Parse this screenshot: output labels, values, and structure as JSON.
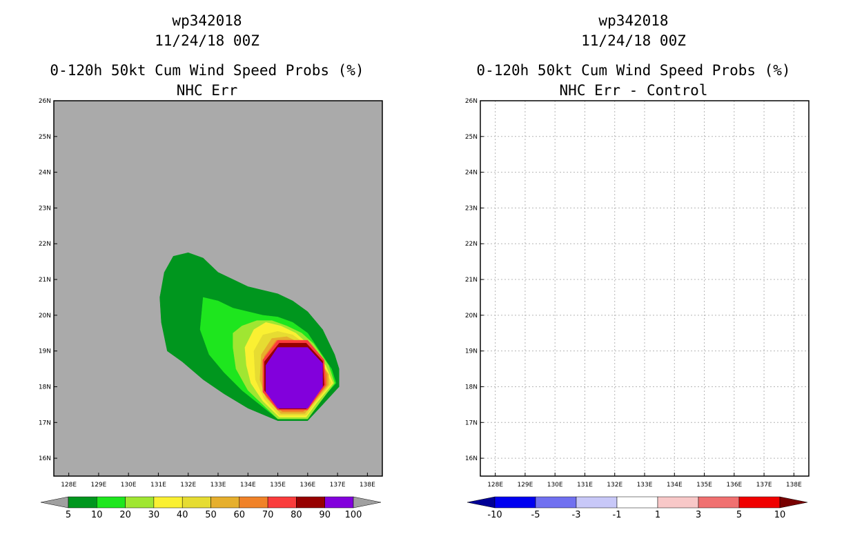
{
  "panels": [
    {
      "id": "left",
      "storm_id": "wp342018",
      "datetime": "11/24/18 00Z",
      "title": "0-120h 50kt Cum Wind Speed Probs (%)",
      "subtitle": "NHC Err",
      "background_color": "#aaaaaa"
    },
    {
      "id": "right",
      "storm_id": "wp342018",
      "datetime": "11/24/18 00Z",
      "title": "0-120h 50kt Cum Wind Speed Probs (%)",
      "subtitle": "NHC Err - Control",
      "background_color": "#ffffff"
    }
  ],
  "chart_data": [
    {
      "type": "contour-map",
      "title": "0-120h 50kt Cum Wind Speed Probs (%)",
      "subtitle": "NHC Err",
      "storm": "wp342018",
      "valid": "11/24/18 00Z",
      "xlim": [
        127.5,
        138.5
      ],
      "ylim": [
        15.5,
        26.0
      ],
      "x_ticks": [
        128,
        129,
        130,
        131,
        132,
        133,
        134,
        135,
        136,
        137,
        138
      ],
      "x_tick_labels": [
        "128E",
        "129E",
        "130E",
        "131E",
        "132E",
        "133E",
        "134E",
        "135E",
        "136E",
        "137E",
        "138E"
      ],
      "y_ticks": [
        16,
        17,
        18,
        19,
        20,
        21,
        22,
        23,
        24,
        25,
        26
      ],
      "y_tick_labels": [
        "16N",
        "17N",
        "18N",
        "19N",
        "20N",
        "21N",
        "22N",
        "23N",
        "24N",
        "25N",
        "26N"
      ],
      "grid": false,
      "colorbar": {
        "levels": [
          "5",
          "10",
          "20",
          "30",
          "40",
          "50",
          "60",
          "70",
          "80",
          "90",
          "100"
        ],
        "colors": [
          "#00961e",
          "#1ee61e",
          "#a0e632",
          "#faf032",
          "#e6dc32",
          "#e6af2d",
          "#f08228",
          "#fa3c3c",
          "#960000",
          "#8200dc"
        ],
        "extend_colors": [
          "#a0a0a0",
          "#a0a0a0"
        ]
      },
      "contours": [
        {
          "level": 5,
          "color": "#00961e",
          "polygon": [
            [
              131.05,
              20.5
            ],
            [
              131.2,
              21.2
            ],
            [
              131.5,
              21.65
            ],
            [
              132.0,
              21.75
            ],
            [
              132.5,
              21.6
            ],
            [
              133.0,
              21.2
            ],
            [
              133.5,
              21.0
            ],
            [
              134.0,
              20.8
            ],
            [
              134.5,
              20.7
            ],
            [
              135.0,
              20.6
            ],
            [
              135.5,
              20.4
            ],
            [
              136.0,
              20.1
            ],
            [
              136.5,
              19.6
            ],
            [
              136.9,
              18.9
            ],
            [
              137.05,
              18.5
            ],
            [
              137.05,
              18.0
            ],
            [
              136.5,
              17.5
            ],
            [
              136.0,
              17.05
            ],
            [
              135.0,
              17.05
            ],
            [
              134.0,
              17.4
            ],
            [
              133.2,
              17.8
            ],
            [
              132.5,
              18.2
            ],
            [
              131.8,
              18.7
            ],
            [
              131.3,
              19.0
            ],
            [
              131.1,
              19.8
            ]
          ]
        },
        {
          "level": 10,
          "color": "#1ee61e",
          "polygon": [
            [
              132.4,
              19.6
            ],
            [
              132.5,
              20.5
            ],
            [
              133.0,
              20.4
            ],
            [
              133.5,
              20.2
            ],
            [
              134.0,
              20.1
            ],
            [
              134.5,
              20.0
            ],
            [
              135.0,
              19.95
            ],
            [
              135.5,
              19.8
            ],
            [
              136.0,
              19.5
            ],
            [
              136.4,
              19.0
            ],
            [
              136.8,
              18.5
            ],
            [
              136.95,
              18.1
            ],
            [
              136.4,
              17.6
            ],
            [
              136.0,
              17.1
            ],
            [
              135.0,
              17.1
            ],
            [
              134.4,
              17.5
            ],
            [
              133.8,
              17.9
            ],
            [
              133.2,
              18.4
            ],
            [
              132.7,
              18.9
            ]
          ]
        },
        {
          "level": 20,
          "color": "#a0e632",
          "polygon": [
            [
              133.5,
              19.1
            ],
            [
              133.5,
              19.5
            ],
            [
              133.8,
              19.7
            ],
            [
              134.3,
              19.85
            ],
            [
              134.8,
              19.85
            ],
            [
              135.3,
              19.7
            ],
            [
              135.8,
              19.5
            ],
            [
              136.2,
              19.2
            ],
            [
              136.7,
              18.6
            ],
            [
              136.9,
              18.1
            ],
            [
              136.4,
              17.55
            ],
            [
              136.0,
              17.1
            ],
            [
              135.0,
              17.1
            ],
            [
              134.5,
              17.5
            ],
            [
              134.0,
              17.9
            ],
            [
              133.6,
              18.5
            ]
          ]
        },
        {
          "level": 30,
          "color": "#faf032",
          "polygon": [
            [
              133.9,
              19.1
            ],
            [
              134.2,
              19.6
            ],
            [
              134.6,
              19.8
            ],
            [
              135.1,
              19.7
            ],
            [
              135.6,
              19.5
            ],
            [
              136.0,
              19.2
            ],
            [
              136.6,
              18.6
            ],
            [
              136.85,
              18.1
            ],
            [
              136.3,
              17.55
            ],
            [
              135.95,
              17.15
            ],
            [
              135.05,
              17.15
            ],
            [
              134.5,
              17.6
            ],
            [
              134.1,
              18.1
            ],
            [
              133.95,
              18.6
            ]
          ]
        },
        {
          "level": 40,
          "color": "#e6dc32",
          "polygon": [
            [
              134.2,
              19.0
            ],
            [
              134.5,
              19.45
            ],
            [
              135.0,
              19.55
            ],
            [
              135.5,
              19.45
            ],
            [
              136.0,
              19.15
            ],
            [
              136.5,
              18.6
            ],
            [
              136.8,
              18.1
            ],
            [
              136.25,
              17.55
            ],
            [
              135.95,
              17.2
            ],
            [
              135.05,
              17.2
            ],
            [
              134.55,
              17.65
            ],
            [
              134.25,
              18.2
            ]
          ]
        },
        {
          "level": 50,
          "color": "#e6af2d",
          "polygon": [
            [
              134.45,
              18.9
            ],
            [
              134.8,
              19.35
            ],
            [
              135.3,
              19.4
            ],
            [
              135.8,
              19.2
            ],
            [
              136.3,
              18.85
            ],
            [
              136.7,
              18.35
            ],
            [
              136.7,
              18.05
            ],
            [
              136.2,
              17.55
            ],
            [
              135.9,
              17.25
            ],
            [
              135.1,
              17.25
            ],
            [
              134.6,
              17.7
            ],
            [
              134.4,
              18.2
            ]
          ]
        },
        {
          "level": 60,
          "color": "#f08228",
          "polygon": [
            [
              134.55,
              18.85
            ],
            [
              134.95,
              19.3
            ],
            [
              135.5,
              19.3
            ],
            [
              136.0,
              19.1
            ],
            [
              136.35,
              18.8
            ],
            [
              136.65,
              18.35
            ],
            [
              136.65,
              18.05
            ],
            [
              136.15,
              17.55
            ],
            [
              135.85,
              17.3
            ],
            [
              135.15,
              17.3
            ],
            [
              134.65,
              17.75
            ],
            [
              134.5,
              18.25
            ]
          ]
        },
        {
          "level": 70,
          "color": "#fa3c3c",
          "polygon": [
            [
              134.5,
              18.75
            ],
            [
              135.0,
              19.3
            ],
            [
              136.0,
              19.3
            ],
            [
              136.55,
              18.75
            ],
            [
              136.6,
              18.05
            ],
            [
              136.0,
              17.35
            ],
            [
              135.0,
              17.35
            ],
            [
              134.5,
              17.85
            ]
          ]
        },
        {
          "level": 80,
          "color": "#960000",
          "polygon": [
            [
              134.55,
              18.7
            ],
            [
              135.05,
              19.22
            ],
            [
              135.95,
              19.22
            ],
            [
              136.5,
              18.72
            ],
            [
              136.55,
              18.05
            ],
            [
              135.95,
              17.38
            ],
            [
              135.05,
              17.38
            ],
            [
              134.55,
              17.9
            ]
          ]
        },
        {
          "level": 90,
          "color": "#8200dc",
          "polygon": [
            [
              134.6,
              18.6
            ],
            [
              135.0,
              19.1
            ],
            [
              136.0,
              19.1
            ],
            [
              136.5,
              18.65
            ],
            [
              136.5,
              18.0
            ],
            [
              136.0,
              17.4
            ],
            [
              135.0,
              17.4
            ],
            [
              134.6,
              17.85
            ]
          ]
        }
      ]
    },
    {
      "type": "contour-map",
      "title": "0-120h 50kt Cum Wind Speed Probs (%)",
      "subtitle": "NHC Err - Control",
      "storm": "wp342018",
      "valid": "11/24/18 00Z",
      "xlim": [
        127.5,
        138.5
      ],
      "ylim": [
        15.5,
        26.0
      ],
      "x_ticks": [
        128,
        129,
        130,
        131,
        132,
        133,
        134,
        135,
        136,
        137,
        138
      ],
      "x_tick_labels": [
        "128E",
        "129E",
        "130E",
        "131E",
        "132E",
        "133E",
        "134E",
        "135E",
        "136E",
        "137E",
        "138E"
      ],
      "y_ticks": [
        16,
        17,
        18,
        19,
        20,
        21,
        22,
        23,
        24,
        25,
        26
      ],
      "y_tick_labels": [
        "16N",
        "17N",
        "18N",
        "19N",
        "20N",
        "21N",
        "22N",
        "23N",
        "24N",
        "25N",
        "26N"
      ],
      "grid": true,
      "colorbar": {
        "levels": [
          "-10",
          "-5",
          "-3",
          "-1",
          "1",
          "3",
          "5",
          "10"
        ],
        "colors": [
          "#0000f0",
          "#7070f0",
          "#c8c8f8",
          "#ffffff",
          "#f8c8c8",
          "#f07070",
          "#f00000"
        ],
        "extend_colors": [
          "#000096",
          "#780000"
        ]
      },
      "contours": []
    }
  ]
}
